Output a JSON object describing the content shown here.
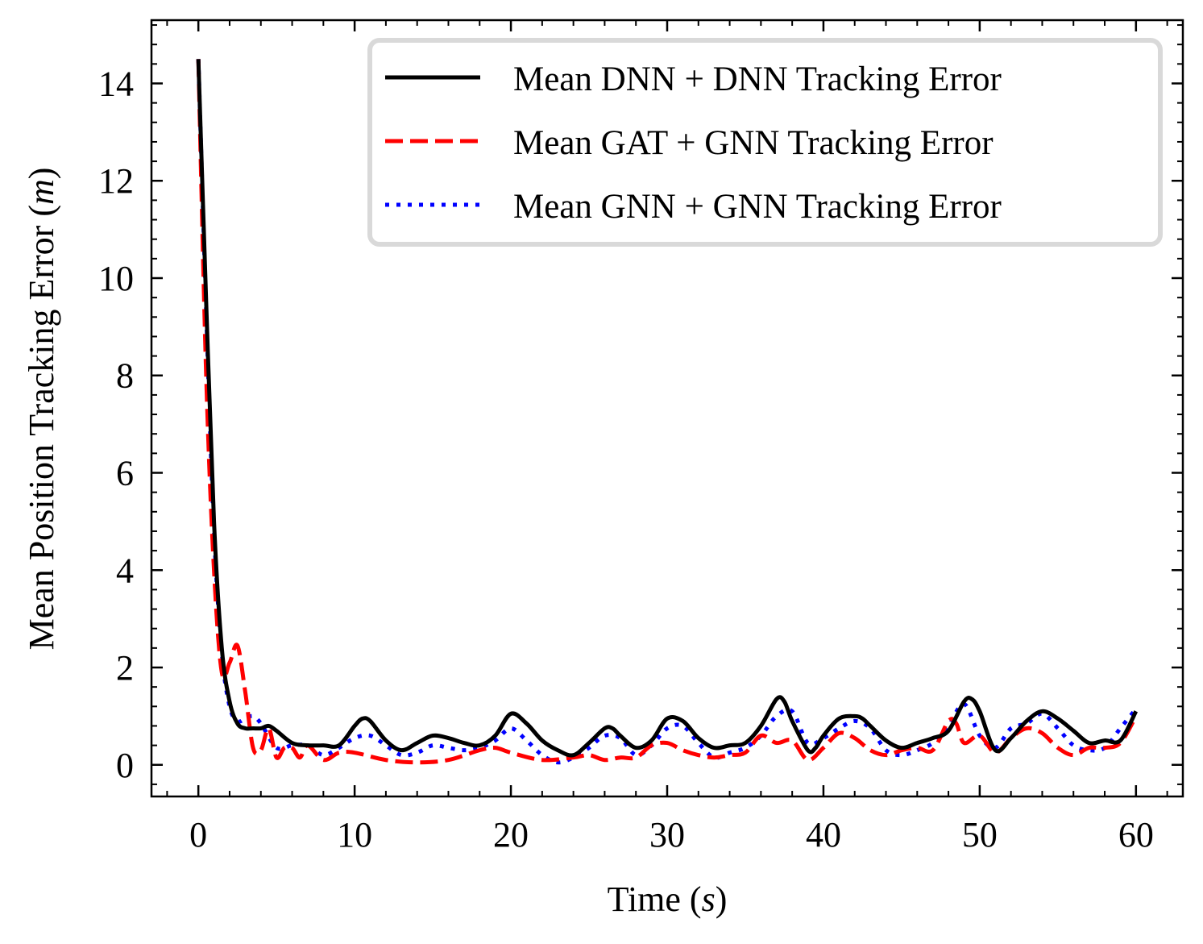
{
  "chart_data": {
    "type": "line",
    "xlabel_prefix": "Time (",
    "xlabel_var": "s",
    "xlabel_suffix": ")",
    "ylabel_prefix": "Mean Position Tracking Error (",
    "ylabel_var": "m",
    "ylabel_suffix": ")",
    "xlim": [
      -3,
      63
    ],
    "ylim": [
      -0.65,
      15.3
    ],
    "x_ticks": [
      0,
      10,
      20,
      30,
      40,
      50,
      60
    ],
    "y_ticks": [
      0,
      2,
      4,
      6,
      8,
      10,
      12,
      14
    ],
    "x_minor_step": 2,
    "y_minor_step": 0.4,
    "legend_position": "top-right",
    "series": [
      {
        "name": "Mean DNN + DNN Tracking Error",
        "color": "#000000",
        "style": "solid",
        "x": [
          0,
          0.5,
          1,
          1.5,
          2,
          2.5,
          3,
          3.5,
          4,
          4.5,
          5,
          6,
          7,
          8,
          9,
          10,
          10.5,
          11,
          12,
          13,
          14,
          15,
          16,
          17,
          18,
          19,
          20,
          21,
          22,
          23,
          24,
          25,
          26,
          26.5,
          27,
          28,
          29,
          30,
          31,
          32,
          33,
          34,
          35,
          36,
          37,
          37.5,
          38,
          39,
          39.5,
          40,
          41,
          42,
          42.5,
          43,
          44,
          45,
          46,
          47,
          48,
          49,
          49.5,
          50,
          51,
          52,
          53,
          54,
          55,
          56,
          57,
          58,
          59,
          60
        ],
        "y": [
          14.5,
          9.5,
          5.0,
          2.4,
          1.3,
          0.85,
          0.75,
          0.75,
          0.75,
          0.8,
          0.7,
          0.45,
          0.4,
          0.4,
          0.4,
          0.8,
          0.95,
          0.9,
          0.5,
          0.3,
          0.45,
          0.6,
          0.55,
          0.45,
          0.4,
          0.6,
          1.05,
          0.85,
          0.5,
          0.3,
          0.2,
          0.45,
          0.75,
          0.75,
          0.6,
          0.35,
          0.5,
          0.95,
          0.9,
          0.55,
          0.35,
          0.4,
          0.45,
          0.8,
          1.35,
          1.3,
          0.9,
          0.3,
          0.35,
          0.6,
          0.95,
          1.0,
          0.95,
          0.8,
          0.5,
          0.35,
          0.45,
          0.55,
          0.7,
          1.3,
          1.35,
          1.1,
          0.3,
          0.55,
          0.9,
          1.1,
          0.95,
          0.7,
          0.45,
          0.5,
          0.5,
          1.1
        ]
      },
      {
        "name": "Mean GAT + GNN Tracking Error",
        "color": "#ff0000",
        "style": "dashed",
        "x": [
          0,
          0.5,
          1,
          1.5,
          2,
          2.5,
          3,
          3.5,
          4,
          4.5,
          5,
          5.5,
          6,
          6.5,
          7,
          8,
          9,
          10,
          12,
          14,
          16,
          18,
          19,
          20,
          22,
          24,
          25,
          26,
          27,
          28,
          29,
          30,
          31,
          32,
          33,
          34,
          35,
          36,
          37,
          38,
          39,
          40,
          41,
          42,
          43,
          44,
          45,
          46,
          47,
          48,
          48.5,
          49,
          50,
          51,
          52,
          53,
          54,
          55,
          56,
          57,
          58,
          59,
          60
        ],
        "y": [
          14.5,
          8.0,
          4.0,
          1.9,
          2.1,
          2.45,
          1.5,
          0.35,
          0.3,
          0.75,
          0.15,
          0.35,
          0.35,
          0.15,
          0.4,
          0.1,
          0.25,
          0.25,
          0.1,
          0.05,
          0.1,
          0.3,
          0.35,
          0.25,
          0.1,
          0.15,
          0.2,
          0.1,
          0.15,
          0.15,
          0.4,
          0.45,
          0.3,
          0.2,
          0.15,
          0.2,
          0.25,
          0.6,
          0.45,
          0.5,
          0.1,
          0.35,
          0.65,
          0.55,
          0.3,
          0.2,
          0.3,
          0.35,
          0.3,
          0.9,
          0.85,
          0.45,
          0.6,
          0.25,
          0.55,
          0.75,
          0.65,
          0.35,
          0.2,
          0.35,
          0.35,
          0.45,
          1.0
        ]
      },
      {
        "name": "Mean GNN + GNN Tracking Error",
        "color": "#0000ff",
        "style": "dotted",
        "x": [
          0,
          0.5,
          1,
          1.5,
          2,
          2.5,
          3,
          3.5,
          4,
          5,
          6,
          7,
          8,
          9,
          10,
          11,
          12,
          13,
          14,
          15,
          16,
          17,
          18,
          19,
          20,
          21,
          22,
          23,
          24,
          25,
          26,
          27,
          28,
          29,
          30,
          31,
          32,
          33,
          34,
          35,
          36,
          37,
          38,
          39,
          40,
          41,
          42,
          43,
          44,
          45,
          46,
          47,
          48,
          49,
          50,
          51,
          52,
          53,
          54,
          55,
          56,
          57,
          58,
          59,
          60
        ],
        "y": [
          14.5,
          9.3,
          4.8,
          2.3,
          1.2,
          0.9,
          0.95,
          1.0,
          0.85,
          0.35,
          0.4,
          0.4,
          0.2,
          0.35,
          0.55,
          0.6,
          0.4,
          0.2,
          0.25,
          0.4,
          0.35,
          0.3,
          0.35,
          0.5,
          0.75,
          0.5,
          0.2,
          0.05,
          0.15,
          0.35,
          0.6,
          0.55,
          0.2,
          0.4,
          0.75,
          0.8,
          0.45,
          0.15,
          0.25,
          0.35,
          0.6,
          1.0,
          1.1,
          0.45,
          0.55,
          0.75,
          0.9,
          0.75,
          0.3,
          0.2,
          0.3,
          0.45,
          0.8,
          1.25,
          0.6,
          0.35,
          0.75,
          0.85,
          1.05,
          0.75,
          0.4,
          0.3,
          0.35,
          0.75,
          1.15
        ]
      }
    ]
  }
}
